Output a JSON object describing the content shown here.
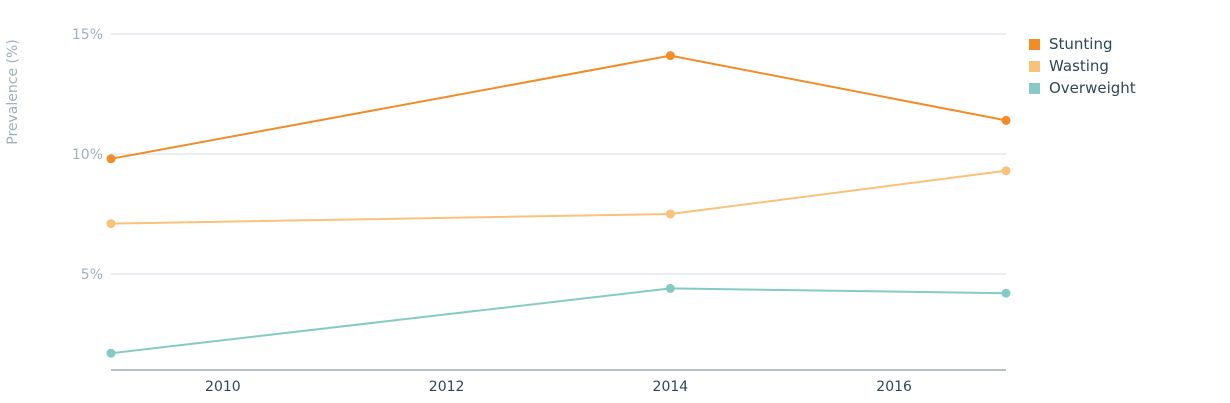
{
  "chart_data": {
    "type": "line",
    "ylabel": "Prevalence (%)",
    "xlabel": "",
    "x": [
      2009,
      2014,
      2017
    ],
    "xlim": [
      2009,
      2017
    ],
    "xticks": [
      2010,
      2012,
      2014,
      2016
    ],
    "ylim": [
      1.5,
      15
    ],
    "yticks": [
      5,
      10,
      15
    ],
    "ytick_labels": [
      "5%",
      "10%",
      "15%"
    ],
    "grid": true,
    "legend_position": "top-right",
    "series": [
      {
        "name": "Stunting",
        "color": "#f28c28",
        "values": [
          9.8,
          14.1,
          11.4
        ]
      },
      {
        "name": "Wasting",
        "color": "#f9c27b",
        "values": [
          7.1,
          7.5,
          9.3
        ]
      },
      {
        "name": "Overweight",
        "color": "#86cac6",
        "values": [
          1.7,
          4.4,
          4.2
        ]
      }
    ]
  }
}
